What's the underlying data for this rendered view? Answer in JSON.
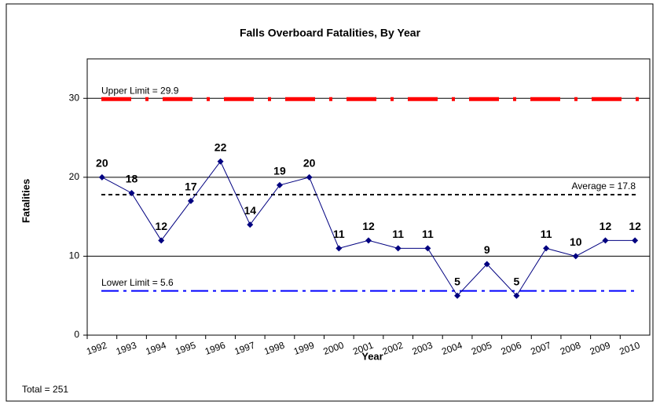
{
  "chart_data": {
    "type": "line",
    "title": "Falls Overboard Fatalities, By Year",
    "x_label": "Year",
    "y_label": "Fatalities",
    "categories": [
      "1992",
      "1993",
      "1994",
      "1995",
      "1996",
      "1997",
      "1998",
      "1999",
      "2000",
      "2001",
      "2002",
      "2003",
      "2004",
      "2005",
      "2006",
      "2007",
      "2008",
      "2009",
      "2010"
    ],
    "series": [
      {
        "name": "Fatalities",
        "color": "#000080",
        "values": [
          20,
          18,
          12,
          17,
          22,
          14,
          19,
          20,
          11,
          12,
          11,
          11,
          5,
          9,
          5,
          11,
          10,
          12,
          12
        ]
      }
    ],
    "ylim": [
      0,
      35
    ],
    "yticks": [
      0,
      10,
      20,
      30
    ],
    "grid": true,
    "reference_lines": [
      {
        "label": "Upper Limit = 29.9",
        "value": 29.9,
        "color": "#ff0000",
        "style": "dash-dot-heavy"
      },
      {
        "label": "Average = 17.8",
        "value": 17.8,
        "color": "#000000",
        "style": "dashed"
      },
      {
        "label": "Lower Limit = 5.6",
        "value": 5.6,
        "color": "#0000ff",
        "style": "dash-dot"
      }
    ],
    "annotations": [
      "Total = 251"
    ]
  }
}
